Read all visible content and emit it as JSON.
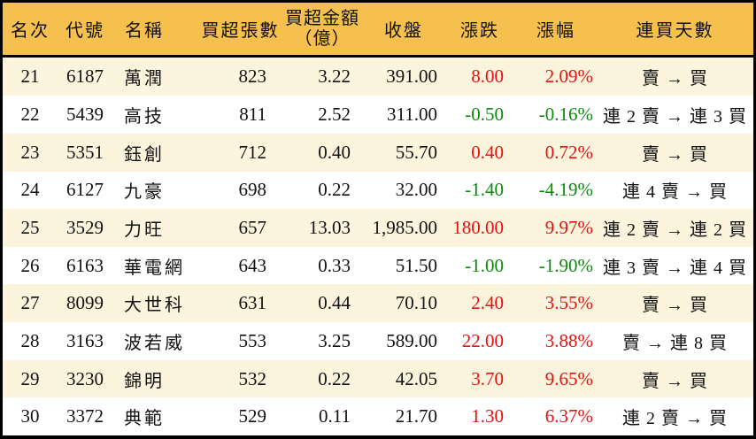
{
  "table": {
    "headers": {
      "rank": "名次",
      "code": "代號",
      "name": "名稱",
      "volume": "買超張數",
      "amount_line1": "買超金額",
      "amount_line2": "（億）",
      "close": "收盤",
      "change": "漲跌",
      "pct": "漲幅",
      "streak": "連買天數"
    },
    "colors": {
      "header_bg": "#f6c04e",
      "row_alt_bg": "#fdf4de",
      "up": "#e81010",
      "down": "#0d8a0d",
      "border": "#000000"
    },
    "rows": [
      {
        "rank": "21",
        "code": "6187",
        "name": "萬潤",
        "volume": "823",
        "amount": "3.22",
        "close": "391.00",
        "change": "8.00",
        "change_dir": "up",
        "pct": "2.09%",
        "streak": "賣 → 買"
      },
      {
        "rank": "22",
        "code": "5439",
        "name": "高技",
        "volume": "811",
        "amount": "2.52",
        "close": "311.00",
        "change": "-0.50",
        "change_dir": "down",
        "pct": "-0.16%",
        "streak": "連 2 賣 → 連 3 買"
      },
      {
        "rank": "23",
        "code": "5351",
        "name": "鈺創",
        "volume": "712",
        "amount": "0.40",
        "close": "55.70",
        "change": "0.40",
        "change_dir": "up",
        "pct": "0.72%",
        "streak": "賣 → 買"
      },
      {
        "rank": "24",
        "code": "6127",
        "name": "九豪",
        "volume": "698",
        "amount": "0.22",
        "close": "32.00",
        "change": "-1.40",
        "change_dir": "down",
        "pct": "-4.19%",
        "streak": "連 4 賣 → 買"
      },
      {
        "rank": "25",
        "code": "3529",
        "name": "力旺",
        "volume": "657",
        "amount": "13.03",
        "close": "1,985.00",
        "change": "180.00",
        "change_dir": "up",
        "pct": "9.97%",
        "streak": "連 2 賣 → 連 2 買"
      },
      {
        "rank": "26",
        "code": "6163",
        "name": "華電網",
        "volume": "643",
        "amount": "0.33",
        "close": "51.50",
        "change": "-1.00",
        "change_dir": "down",
        "pct": "-1.90%",
        "streak": "連 3 賣 → 連 4 買"
      },
      {
        "rank": "27",
        "code": "8099",
        "name": "大世科",
        "volume": "631",
        "amount": "0.44",
        "close": "70.10",
        "change": "2.40",
        "change_dir": "up",
        "pct": "3.55%",
        "streak": "賣 → 買"
      },
      {
        "rank": "28",
        "code": "3163",
        "name": "波若威",
        "volume": "553",
        "amount": "3.25",
        "close": "589.00",
        "change": "22.00",
        "change_dir": "up",
        "pct": "3.88%",
        "streak": "賣 → 連 8 買"
      },
      {
        "rank": "29",
        "code": "3230",
        "name": "錦明",
        "volume": "532",
        "amount": "0.22",
        "close": "42.05",
        "change": "3.70",
        "change_dir": "up",
        "pct": "9.65%",
        "streak": "賣 → 買"
      },
      {
        "rank": "30",
        "code": "3372",
        "name": "典範",
        "volume": "529",
        "amount": "0.11",
        "close": "21.70",
        "change": "1.30",
        "change_dir": "up",
        "pct": "6.37%",
        "streak": "連 2 賣 → 買"
      }
    ]
  },
  "chart_data": {
    "type": "table",
    "title": "買超排行 21-30（table of net-buy ranking）",
    "columns": [
      "名次",
      "代號",
      "名稱",
      "買超張數",
      "買超金額（億）",
      "收盤",
      "漲跌",
      "漲幅",
      "連買天數"
    ],
    "rows": [
      [
        "21",
        "6187",
        "萬潤",
        "823",
        "3.22",
        "391.00",
        "8.00",
        "2.09%",
        "賣 → 買"
      ],
      [
        "22",
        "5439",
        "高技",
        "811",
        "2.52",
        "311.00",
        "-0.50",
        "-0.16%",
        "連 2 賣 → 連 3 買"
      ],
      [
        "23",
        "5351",
        "鈺創",
        "712",
        "0.40",
        "55.70",
        "0.40",
        "0.72%",
        "賣 → 買"
      ],
      [
        "24",
        "6127",
        "九豪",
        "698",
        "0.22",
        "32.00",
        "-1.40",
        "-4.19%",
        "連 4 賣 → 買"
      ],
      [
        "25",
        "3529",
        "力旺",
        "657",
        "13.03",
        "1,985.00",
        "180.00",
        "9.97%",
        "連 2 賣 → 連 2 買"
      ],
      [
        "26",
        "6163",
        "華電網",
        "643",
        "0.33",
        "51.50",
        "-1.00",
        "-1.90%",
        "連 3 賣 → 連 4 買"
      ],
      [
        "27",
        "8099",
        "大世科",
        "631",
        "0.44",
        "70.10",
        "2.40",
        "3.55%",
        "賣 → 買"
      ],
      [
        "28",
        "3163",
        "波若威",
        "553",
        "3.25",
        "589.00",
        "22.00",
        "3.88%",
        "賣 → 連 8 買"
      ],
      [
        "29",
        "3230",
        "錦明",
        "532",
        "0.22",
        "42.05",
        "3.70",
        "9.65%",
        "賣 → 買"
      ],
      [
        "30",
        "3372",
        "典範",
        "529",
        "0.11",
        "21.70",
        "1.30",
        "6.37%",
        "連 2 賣 → 買"
      ]
    ],
    "notes": "positive 漲跌/漲幅 shown in red, negative in green; rows alternate cream/white; gold header band with black rule"
  }
}
